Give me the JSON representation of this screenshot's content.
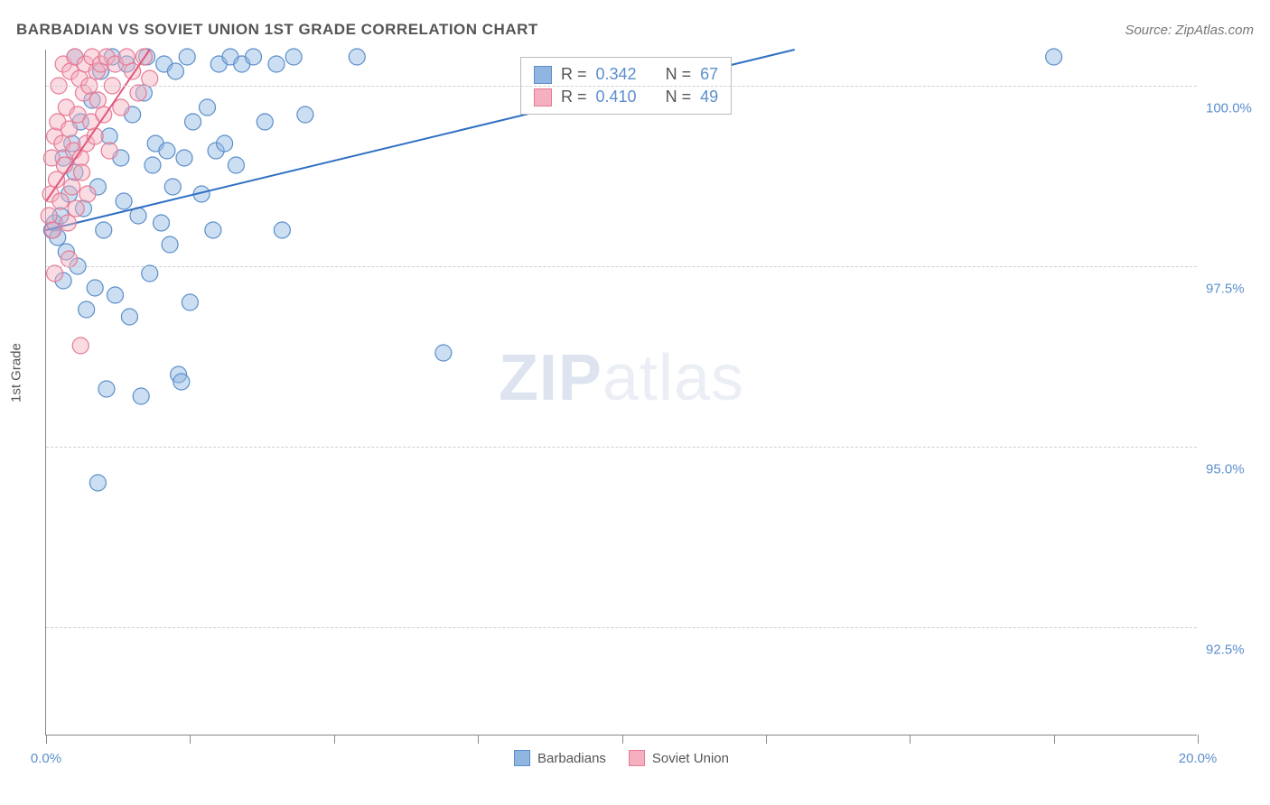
{
  "title": "BARBADIAN VS SOVIET UNION 1ST GRADE CORRELATION CHART",
  "source": "Source: ZipAtlas.com",
  "ylabel": "1st Grade",
  "watermark": {
    "bold": "ZIP",
    "rest": "atlas"
  },
  "chart": {
    "type": "scatter",
    "xlim": [
      0.0,
      20.0
    ],
    "ylim": [
      91.0,
      100.5
    ],
    "xtick_positions": [
      0.0,
      2.5,
      5.0,
      7.5,
      10.0,
      12.5,
      15.0,
      17.5,
      20.0
    ],
    "xtick_labels": {
      "0": "0.0%",
      "8": "20.0%"
    },
    "ytick_positions": [
      92.5,
      95.0,
      97.5,
      100.0
    ],
    "ytick_labels": [
      "92.5%",
      "95.0%",
      "97.5%",
      "100.0%"
    ],
    "grid_color": "#d0d0d0",
    "axis_color": "#888888",
    "background_color": "#ffffff",
    "marker_radius": 9,
    "marker_opacity": 0.45,
    "series": [
      {
        "name": "Barbadians",
        "color_fill": "#8fb5e0",
        "color_stroke": "#5b8ecb",
        "points": [
          [
            0.1,
            98.0
          ],
          [
            0.15,
            98.1
          ],
          [
            0.2,
            97.9
          ],
          [
            0.25,
            98.2
          ],
          [
            0.3,
            99.0
          ],
          [
            0.35,
            97.7
          ],
          [
            0.4,
            98.5
          ],
          [
            0.45,
            99.2
          ],
          [
            0.5,
            98.8
          ],
          [
            0.5,
            100.4
          ],
          [
            0.55,
            97.5
          ],
          [
            0.6,
            99.5
          ],
          [
            0.65,
            98.3
          ],
          [
            0.7,
            96.9
          ],
          [
            0.8,
            99.8
          ],
          [
            0.85,
            97.2
          ],
          [
            0.9,
            98.6
          ],
          [
            0.95,
            100.2
          ],
          [
            1.0,
            98.0
          ],
          [
            1.05,
            95.8
          ],
          [
            1.1,
            99.3
          ],
          [
            1.15,
            100.4
          ],
          [
            1.2,
            97.1
          ],
          [
            1.3,
            99.0
          ],
          [
            1.35,
            98.4
          ],
          [
            1.4,
            100.3
          ],
          [
            1.45,
            96.8
          ],
          [
            1.5,
            99.6
          ],
          [
            0.9,
            94.5
          ],
          [
            1.6,
            98.2
          ],
          [
            1.65,
            95.7
          ],
          [
            1.7,
            99.9
          ],
          [
            1.75,
            100.4
          ],
          [
            1.8,
            97.4
          ],
          [
            1.85,
            98.9
          ],
          [
            1.9,
            99.2
          ],
          [
            2.0,
            98.1
          ],
          [
            2.05,
            100.3
          ],
          [
            2.1,
            99.1
          ],
          [
            2.15,
            97.8
          ],
          [
            2.2,
            98.6
          ],
          [
            2.25,
            100.2
          ],
          [
            2.3,
            96.0
          ],
          [
            2.4,
            99.0
          ],
          [
            2.45,
            100.4
          ],
          [
            2.5,
            97.0
          ],
          [
            2.55,
            99.5
          ],
          [
            2.7,
            98.5
          ],
          [
            2.8,
            99.7
          ],
          [
            2.9,
            98.0
          ],
          [
            2.95,
            99.1
          ],
          [
            3.0,
            100.3
          ],
          [
            3.1,
            99.2
          ],
          [
            3.2,
            100.4
          ],
          [
            3.3,
            98.9
          ],
          [
            3.4,
            100.3
          ],
          [
            3.6,
            100.4
          ],
          [
            3.8,
            99.5
          ],
          [
            4.0,
            100.3
          ],
          [
            4.1,
            98.0
          ],
          [
            4.3,
            100.4
          ],
          [
            4.5,
            99.6
          ],
          [
            5.4,
            100.4
          ],
          [
            6.9,
            96.3
          ],
          [
            17.5,
            100.4
          ],
          [
            2.35,
            95.9
          ],
          [
            0.3,
            97.3
          ]
        ],
        "trend": {
          "x1": 0.0,
          "y1": 98.0,
          "x2": 13.0,
          "y2": 100.5,
          "color": "#2f6fc2",
          "width": 2
        }
      },
      {
        "name": "Soviet Union",
        "color_fill": "#f4b0bf",
        "color_stroke": "#e77a95",
        "points": [
          [
            0.05,
            98.2
          ],
          [
            0.08,
            98.5
          ],
          [
            0.1,
            99.0
          ],
          [
            0.12,
            98.0
          ],
          [
            0.15,
            99.3
          ],
          [
            0.18,
            98.7
          ],
          [
            0.2,
            99.5
          ],
          [
            0.22,
            100.0
          ],
          [
            0.25,
            98.4
          ],
          [
            0.28,
            99.2
          ],
          [
            0.3,
            100.3
          ],
          [
            0.32,
            98.9
          ],
          [
            0.35,
            99.7
          ],
          [
            0.38,
            98.1
          ],
          [
            0.4,
            99.4
          ],
          [
            0.42,
            100.2
          ],
          [
            0.45,
            98.6
          ],
          [
            0.48,
            99.1
          ],
          [
            0.5,
            100.4
          ],
          [
            0.52,
            98.3
          ],
          [
            0.55,
            99.6
          ],
          [
            0.58,
            100.1
          ],
          [
            0.6,
            99.0
          ],
          [
            0.62,
            98.8
          ],
          [
            0.65,
            99.9
          ],
          [
            0.68,
            100.3
          ],
          [
            0.7,
            99.2
          ],
          [
            0.72,
            98.5
          ],
          [
            0.75,
            100.0
          ],
          [
            0.78,
            99.5
          ],
          [
            0.8,
            100.4
          ],
          [
            0.85,
            99.3
          ],
          [
            0.88,
            100.2
          ],
          [
            0.9,
            99.8
          ],
          [
            0.95,
            100.3
          ],
          [
            1.0,
            99.6
          ],
          [
            1.05,
            100.4
          ],
          [
            1.1,
            99.1
          ],
          [
            1.15,
            100.0
          ],
          [
            1.2,
            100.3
          ],
          [
            1.3,
            99.7
          ],
          [
            1.4,
            100.4
          ],
          [
            1.5,
            100.2
          ],
          [
            1.6,
            99.9
          ],
          [
            1.7,
            100.4
          ],
          [
            1.8,
            100.1
          ],
          [
            0.15,
            97.4
          ],
          [
            0.6,
            96.4
          ],
          [
            0.4,
            97.6
          ]
        ],
        "trend": {
          "x1": 0.0,
          "y1": 98.4,
          "x2": 1.8,
          "y2": 100.5,
          "color": "#e05a7d",
          "width": 2
        }
      }
    ]
  },
  "stats_box": {
    "rows": [
      {
        "swatch_fill": "#8fb5e0",
        "swatch_stroke": "#5b8ecb",
        "r_label": "R =",
        "r_value": "0.342",
        "n_label": "N =",
        "n_value": "67"
      },
      {
        "swatch_fill": "#f4b0bf",
        "swatch_stroke": "#e77a95",
        "r_label": "R =",
        "r_value": "0.410",
        "n_label": "N =",
        "n_value": "49"
      }
    ]
  },
  "legend_bottom": [
    {
      "swatch_fill": "#8fb5e0",
      "swatch_stroke": "#5b8ecb",
      "label": "Barbadians"
    },
    {
      "swatch_fill": "#f4b0bf",
      "swatch_stroke": "#e77a95",
      "label": "Soviet Union"
    }
  ]
}
